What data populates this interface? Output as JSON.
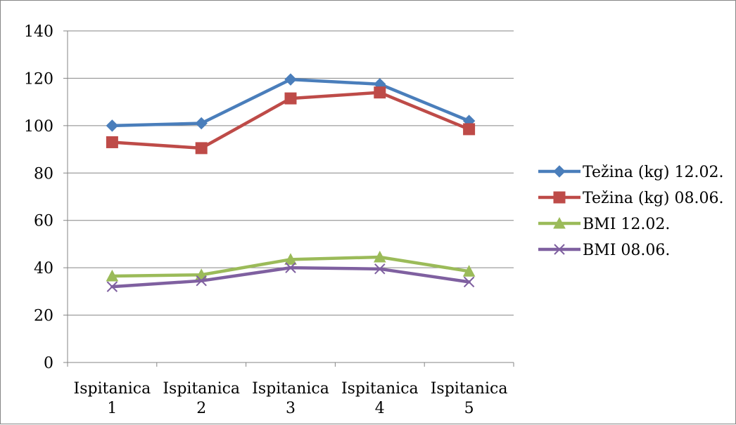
{
  "chart_data": {
    "type": "line",
    "categories": [
      [
        "Ispitanica",
        "1"
      ],
      [
        "Ispitanica",
        "2"
      ],
      [
        "Ispitanica",
        "3"
      ],
      [
        "Ispitanica",
        "4"
      ],
      [
        "Ispitanica",
        "5"
      ]
    ],
    "ylim": [
      0,
      140
    ],
    "yticks": [
      0,
      20,
      40,
      60,
      80,
      100,
      120,
      140
    ],
    "grid": true,
    "legend_position": "right",
    "series": [
      {
        "name": "Težina (kg) 12.02.",
        "color": "#4A7EBB",
        "marker": "diamond",
        "values": [
          100,
          101,
          119.5,
          117.5,
          102
        ]
      },
      {
        "name": "Težina (kg) 08.06.",
        "color": "#BE4B48",
        "marker": "square",
        "values": [
          93,
          90.5,
          111.5,
          114,
          98.5
        ]
      },
      {
        "name": "BMI 12.02.",
        "color": "#9BBB59",
        "marker": "triangle",
        "values": [
          36.5,
          37,
          43.5,
          44.5,
          38.5
        ]
      },
      {
        "name": "BMI 08.06.",
        "color": "#7F60A0",
        "marker": "x",
        "values": [
          32,
          34.5,
          40,
          39.5,
          34
        ]
      }
    ]
  }
}
